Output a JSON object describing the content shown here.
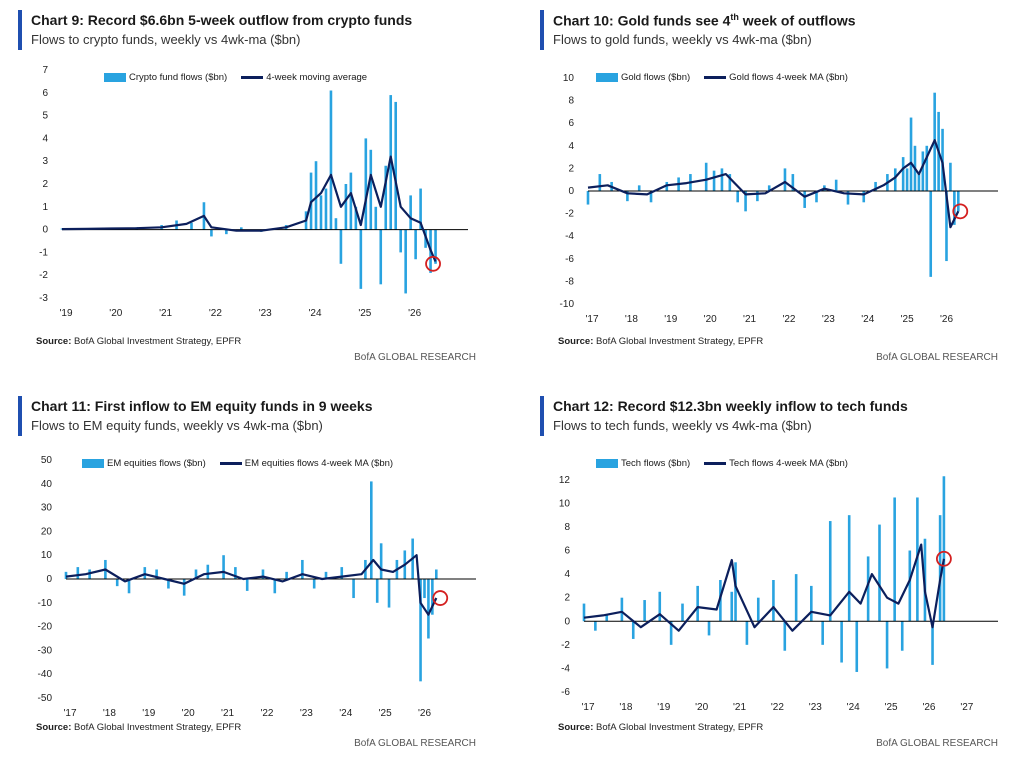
{
  "colors": {
    "accent": "#1f4fb0",
    "bar": "#29a3e0",
    "line": "#0c1f5c",
    "circle": "#d42020",
    "zero": "#000000"
  },
  "source_label": "Source:",
  "source_text": " BofA Global Investment Strategy, EPFR",
  "brand": "BofA GLOBAL RESEARCH",
  "charts": [
    {
      "title": "Chart 9: Record $6.6bn 5-week outflow from crypto funds",
      "subtitle": "Flows to crypto funds, weekly vs 4wk-ma ($bn)",
      "legend": [
        "Crypto fund flows ($bn)",
        "4-week moving average"
      ]
    },
    {
      "title_pre": "Chart 10: Gold funds see 4",
      "title_sup": "th",
      "title_post": " week of outflows",
      "subtitle": "Flows to gold funds, weekly vs 4wk-ma ($bn)",
      "legend": [
        "Gold flows ($bn)",
        "Gold flows 4-week MA ($bn)"
      ]
    },
    {
      "title": "Chart 11: First inflow to EM equity funds in 9 weeks",
      "subtitle": "Flows to EM equity funds, weekly vs 4wk-ma ($bn)",
      "legend": [
        "EM equities flows ($bn)",
        "EM equities flows 4-week MA ($bn)"
      ]
    },
    {
      "title": "Chart 12: Record $12.3bn weekly inflow to tech funds",
      "subtitle": "Flows to tech funds, weekly vs 4wk-ma ($bn)",
      "legend": [
        "Tech flows ($bn)",
        "Tech flows 4-week MA ($bn)"
      ]
    }
  ],
  "chart_data": [
    {
      "type": "bar",
      "title": "Chart 9: Record $6.6bn 5-week outflow from crypto funds",
      "subtitle": "Flows to crypto funds, weekly vs 4wk-ma ($bn)",
      "x_tick_labels": [
        "'19",
        "'20",
        "'21",
        "'22",
        "'23",
        "'24",
        "'25",
        "'26"
      ],
      "y_ticks": [
        7,
        6,
        5,
        4,
        3,
        2,
        1,
        0,
        -1,
        -2,
        -3
      ],
      "ylim": [
        -3,
        7
      ],
      "x_start": 2019.0,
      "x_end": 2026.75,
      "series": [
        {
          "name": "Crypto fund flows ($bn)",
          "kind": "bar",
          "x": [
            2019.0,
            2019.5,
            2020.0,
            2020.5,
            2021.0,
            2021.3,
            2021.6,
            2021.85,
            2022.0,
            2022.3,
            2022.6,
            2023.0,
            2023.5,
            2023.9,
            2024.0,
            2024.1,
            2024.2,
            2024.3,
            2024.4,
            2024.5,
            2024.6,
            2024.7,
            2024.8,
            2024.9,
            2025.0,
            2025.1,
            2025.2,
            2025.3,
            2025.4,
            2025.5,
            2025.6,
            2025.7,
            2025.8,
            2025.9,
            2026.0,
            2026.1,
            2026.2,
            2026.3,
            2026.4,
            2026.5
          ],
          "y": [
            0.05,
            0.05,
            0.08,
            0.1,
            0.2,
            0.4,
            0.3,
            1.2,
            -0.3,
            -0.2,
            0.1,
            -0.1,
            0.2,
            0.8,
            2.5,
            3.0,
            1.5,
            1.8,
            6.1,
            0.5,
            -1.5,
            2.0,
            2.5,
            1.0,
            -2.6,
            4.0,
            3.5,
            1.0,
            -2.4,
            2.8,
            5.9,
            5.6,
            -1.0,
            -2.8,
            1.5,
            -1.3,
            1.8,
            -0.8,
            -1.9,
            -1.5
          ]
        },
        {
          "name": "4-week moving average",
          "kind": "line",
          "x": [
            2019.0,
            2019.5,
            2020.0,
            2020.5,
            2021.0,
            2021.5,
            2021.85,
            2022.0,
            2022.5,
            2023.0,
            2023.5,
            2023.9,
            2024.0,
            2024.2,
            2024.4,
            2024.6,
            2024.8,
            2025.0,
            2025.2,
            2025.4,
            2025.6,
            2025.8,
            2026.0,
            2026.2,
            2026.4,
            2026.5
          ],
          "y": [
            0.02,
            0.03,
            0.05,
            0.06,
            0.1,
            0.25,
            0.6,
            0.1,
            -0.05,
            -0.05,
            0.1,
            0.4,
            1.2,
            1.6,
            2.4,
            1.0,
            1.6,
            0.2,
            2.4,
            1.0,
            3.2,
            1.0,
            0.5,
            0.3,
            -0.9,
            -1.4
          ]
        }
      ],
      "annotation": {
        "type": "circle",
        "x": 2026.45,
        "y": -1.5
      }
    },
    {
      "type": "bar",
      "title": "Chart 10: Gold funds see 4th week of outflows",
      "subtitle": "Flows to gold funds, weekly vs 4wk-ma ($bn)",
      "x_tick_labels": [
        "'17",
        "'18",
        "'19",
        "'20",
        "'21",
        "'22",
        "'23",
        "'24",
        "'25",
        "'26"
      ],
      "y_ticks": [
        10,
        8,
        6,
        4,
        2,
        0,
        -2,
        -4,
        -6,
        -8,
        -10
      ],
      "ylim": [
        -10,
        10
      ],
      "x_start": 2017.0,
      "x_end": 2026.9,
      "series": [
        {
          "name": "Gold flows ($bn)",
          "kind": "bar",
          "x": [
            2017.0,
            2017.3,
            2017.6,
            2018.0,
            2018.3,
            2018.6,
            2019.0,
            2019.3,
            2019.6,
            2020.0,
            2020.2,
            2020.4,
            2020.6,
            2020.8,
            2021.0,
            2021.3,
            2021.6,
            2022.0,
            2022.2,
            2022.5,
            2022.8,
            2023.0,
            2023.3,
            2023.6,
            2024.0,
            2024.3,
            2024.6,
            2024.8,
            2025.0,
            2025.1,
            2025.2,
            2025.3,
            2025.4,
            2025.5,
            2025.6,
            2025.7,
            2025.8,
            2025.9,
            2026.0,
            2026.1,
            2026.2,
            2026.3,
            2026.4
          ],
          "y": [
            -1.2,
            1.5,
            0.8,
            -0.9,
            0.5,
            -1.0,
            0.8,
            1.2,
            1.5,
            2.5,
            1.8,
            2.0,
            1.5,
            -1.0,
            -1.8,
            -0.9,
            0.5,
            2.0,
            1.5,
            -1.5,
            -1.0,
            0.5,
            1.0,
            -1.2,
            -1.0,
            0.8,
            1.5,
            2.0,
            3.0,
            2.0,
            6.5,
            4.0,
            1.5,
            3.5,
            4.0,
            -7.6,
            8.7,
            7.0,
            5.5,
            -6.2,
            2.5,
            -3.0,
            -1.8
          ]
        },
        {
          "name": "Gold flows 4-week MA ($bn)",
          "kind": "line",
          "x": [
            2017.0,
            2017.5,
            2018.0,
            2018.5,
            2019.0,
            2019.5,
            2020.0,
            2020.5,
            2021.0,
            2021.5,
            2022.0,
            2022.5,
            2023.0,
            2023.5,
            2024.0,
            2024.5,
            2024.8,
            2025.0,
            2025.2,
            2025.4,
            2025.6,
            2025.8,
            2026.0,
            2026.2,
            2026.4
          ],
          "y": [
            0.3,
            0.5,
            -0.2,
            -0.3,
            0.5,
            0.7,
            1.0,
            1.5,
            -0.3,
            -0.2,
            0.8,
            -0.5,
            0.2,
            -0.2,
            -0.3,
            0.5,
            1.2,
            2.0,
            2.5,
            1.5,
            3.0,
            4.5,
            2.5,
            -3.2,
            -1.8
          ]
        }
      ],
      "annotation": {
        "type": "circle",
        "x": 2026.45,
        "y": -1.8
      }
    },
    {
      "type": "bar",
      "title": "Chart 11: First inflow to EM equity funds in 9 weeks",
      "subtitle": "Flows to EM equity funds, weekly vs 4wk-ma ($bn)",
      "x_tick_labels": [
        "'17",
        "'18",
        "'19",
        "'20",
        "'21",
        "'22",
        "'23",
        "'24",
        "'25",
        "'26"
      ],
      "y_ticks": [
        50,
        40,
        30,
        20,
        10,
        0,
        -10,
        -20,
        -30,
        -40,
        -50
      ],
      "ylim": [
        -50,
        50
      ],
      "x_start": 2017.0,
      "x_end": 2026.9,
      "series": [
        {
          "name": "EM equities flows ($bn)",
          "kind": "bar",
          "x": [
            2017.0,
            2017.3,
            2017.6,
            2018.0,
            2018.3,
            2018.6,
            2019.0,
            2019.3,
            2019.6,
            2020.0,
            2020.3,
            2020.6,
            2021.0,
            2021.3,
            2021.6,
            2022.0,
            2022.3,
            2022.6,
            2023.0,
            2023.3,
            2023.6,
            2024.0,
            2024.3,
            2024.6,
            2024.75,
            2024.9,
            2025.0,
            2025.2,
            2025.4,
            2025.6,
            2025.8,
            2026.0,
            2026.1,
            2026.2,
            2026.3,
            2026.4
          ],
          "y": [
            3,
            5,
            4,
            8,
            -3,
            -6,
            5,
            4,
            -4,
            -7,
            4,
            6,
            10,
            5,
            -5,
            4,
            -6,
            3,
            8,
            -4,
            3,
            5,
            -8,
            8,
            41,
            -10,
            15,
            -12,
            8,
            12,
            17,
            -43,
            -8,
            -25,
            -15,
            4
          ]
        },
        {
          "name": "EM equities flows 4-week MA ($bn)",
          "kind": "line",
          "x": [
            2017.0,
            2017.5,
            2018.0,
            2018.5,
            2019.0,
            2019.5,
            2020.0,
            2020.5,
            2021.0,
            2021.5,
            2022.0,
            2022.5,
            2023.0,
            2023.5,
            2024.0,
            2024.5,
            2024.8,
            2025.0,
            2025.3,
            2025.6,
            2025.9,
            2026.0,
            2026.2,
            2026.4
          ],
          "y": [
            1,
            2,
            4,
            -1,
            2,
            0,
            -2,
            2,
            3,
            0,
            1,
            -1,
            2,
            0,
            1,
            2,
            8,
            4,
            3,
            6,
            10,
            -10,
            -15,
            -8
          ]
        }
      ],
      "annotation": {
        "type": "circle",
        "x": 2026.5,
        "y": -8
      }
    },
    {
      "type": "bar",
      "title": "Chart 12: Record $12.3bn weekly inflow to tech funds",
      "subtitle": "Flows to tech funds, weekly vs 4wk-ma ($bn)",
      "x_tick_labels": [
        "'17",
        "'18",
        "'19",
        "'20",
        "'21",
        "'22",
        "'23",
        "'24",
        "'25",
        "'26",
        "'27"
      ],
      "y_ticks": [
        12,
        10,
        8,
        6,
        4,
        2,
        0,
        -2,
        -4,
        -6
      ],
      "ylim": [
        -6,
        13
      ],
      "x_start": 2017.0,
      "x_end": 2027.4,
      "series": [
        {
          "name": "Tech flows ($bn)",
          "kind": "bar",
          "x": [
            2017.0,
            2017.3,
            2017.6,
            2018.0,
            2018.3,
            2018.6,
            2019.0,
            2019.3,
            2019.6,
            2020.0,
            2020.3,
            2020.6,
            2020.9,
            2021.0,
            2021.3,
            2021.6,
            2022.0,
            2022.3,
            2022.6,
            2023.0,
            2023.3,
            2023.5,
            2023.8,
            2024.0,
            2024.2,
            2024.5,
            2024.8,
            2025.0,
            2025.2,
            2025.4,
            2025.6,
            2025.8,
            2026.0,
            2026.2,
            2026.4,
            2026.5
          ],
          "y": [
            1.5,
            -0.8,
            0.5,
            2.0,
            -1.5,
            1.8,
            2.5,
            -2.0,
            1.5,
            3.0,
            -1.2,
            3.5,
            2.5,
            5.0,
            -2.0,
            2.0,
            3.5,
            -2.5,
            4.0,
            3.0,
            -2.0,
            8.5,
            -3.5,
            9.0,
            -4.3,
            5.5,
            8.2,
            -4.0,
            10.5,
            -2.5,
            6.0,
            10.5,
            7.0,
            -3.7,
            9.0,
            12.3
          ]
        },
        {
          "name": "Tech flows 4-week MA ($bn)",
          "kind": "line",
          "x": [
            2017.0,
            2017.5,
            2018.0,
            2018.5,
            2019.0,
            2019.5,
            2020.0,
            2020.5,
            2020.9,
            2021.0,
            2021.5,
            2022.0,
            2022.5,
            2023.0,
            2023.5,
            2024.0,
            2024.3,
            2024.6,
            2025.0,
            2025.3,
            2025.6,
            2025.9,
            2026.0,
            2026.2,
            2026.4,
            2026.5
          ],
          "y": [
            0.3,
            0.5,
            0.8,
            -0.5,
            0.6,
            -0.8,
            1.2,
            1.0,
            5.2,
            3.0,
            -0.5,
            1.2,
            -0.8,
            0.8,
            0.5,
            2.5,
            1.5,
            4.0,
            2.0,
            1.5,
            3.5,
            6.5,
            2.5,
            -0.5,
            3.5,
            5.3
          ]
        }
      ],
      "annotation": {
        "type": "circle",
        "x": 2026.5,
        "y": 5.3
      }
    }
  ]
}
